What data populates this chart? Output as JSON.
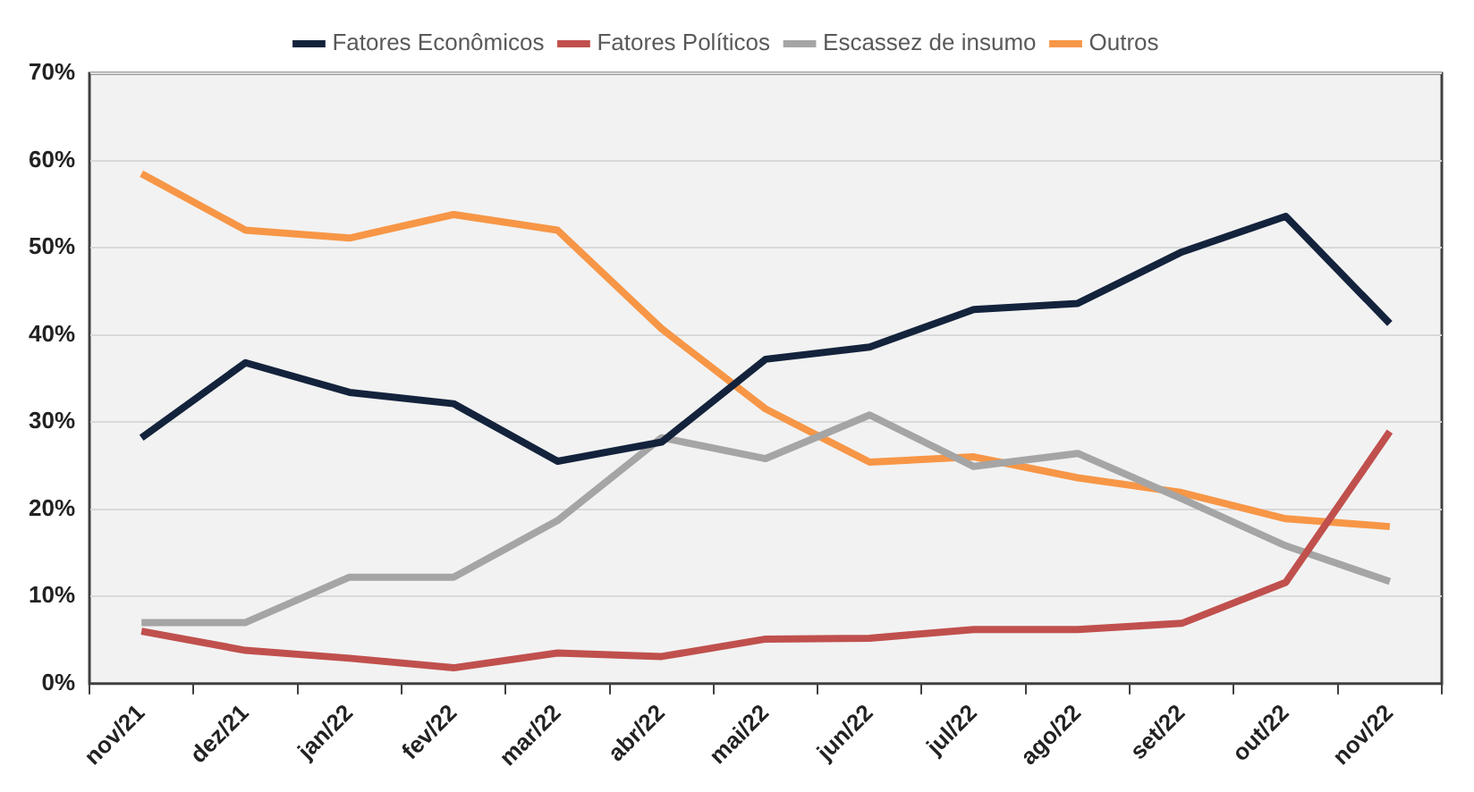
{
  "chart_data": {
    "type": "line",
    "categories": [
      "nov/21",
      "dez/21",
      "jan/22",
      "fev/22",
      "mar/22",
      "abr/22",
      "mai/22",
      "jun/22",
      "jul/22",
      "ago/22",
      "set/22",
      "out/22",
      "nov/22"
    ],
    "series": [
      {
        "name": "Fatores Econômicos",
        "color": "#14233c",
        "values": [
          28.2,
          36.8,
          33.4,
          32.1,
          25.5,
          27.7,
          37.2,
          38.6,
          42.9,
          43.6,
          49.5,
          53.6,
          41.3
        ]
      },
      {
        "name": "Fatores Políticos",
        "color": "#c0504d",
        "values": [
          6.0,
          3.8,
          2.9,
          1.8,
          3.5,
          3.1,
          5.1,
          5.2,
          6.2,
          6.2,
          6.9,
          11.6,
          28.9
        ]
      },
      {
        "name": "Escassez de insumo",
        "color": "#a5a5a5",
        "values": [
          7.0,
          7.0,
          12.2,
          12.2,
          18.7,
          28.2,
          25.8,
          30.8,
          24.9,
          26.4,
          21.2,
          15.8,
          11.7
        ]
      },
      {
        "name": "Outros",
        "color": "#f79646",
        "values": [
          58.5,
          52.0,
          51.1,
          53.8,
          52.0,
          40.7,
          31.5,
          25.4,
          26.0,
          23.6,
          21.9,
          18.9,
          18.0
        ]
      }
    ],
    "ylim": [
      0,
      70
    ],
    "yticks": [
      {
        "value": 0,
        "label": "0%"
      },
      {
        "value": 10,
        "label": "10%"
      },
      {
        "value": 20,
        "label": "20%"
      },
      {
        "value": 30,
        "label": "30%"
      },
      {
        "value": 40,
        "label": "40%"
      },
      {
        "value": 50,
        "label": "50%"
      },
      {
        "value": 60,
        "label": "60%"
      },
      {
        "value": 70,
        "label": "70%"
      }
    ],
    "grid": "y",
    "legend": "top",
    "marker": "none",
    "line_style": "solid"
  }
}
